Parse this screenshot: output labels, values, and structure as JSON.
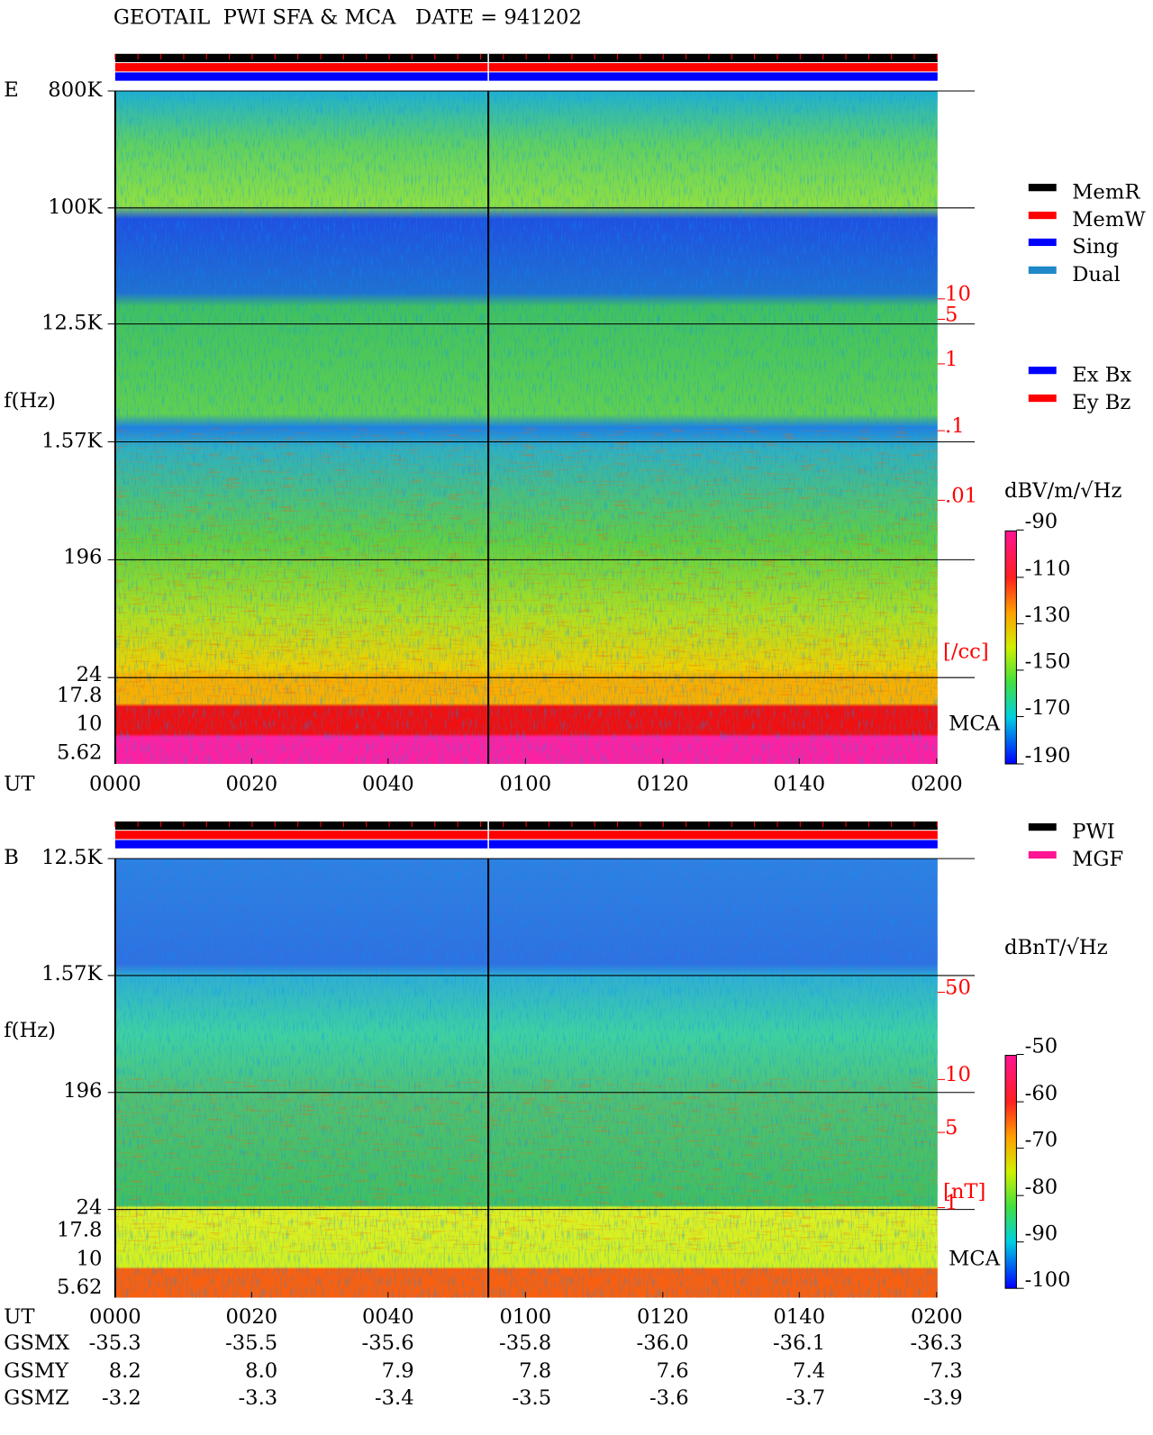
{
  "title": "GEOTAIL  PWI SFA & MCA   DATE = 941202",
  "panels": [
    {
      "label": "E",
      "y_label": "f(Hz)",
      "freq_ticks": [
        "800K",
        "100K",
        "12.5K",
        "1.57K",
        "196",
        "24",
        "17.8",
        "10",
        "5.62"
      ],
      "right_ticks": [
        "10",
        "5",
        "1",
        ".1",
        ".01"
      ],
      "right_unit": "[/cc]",
      "mca_label": "MCA",
      "colorbar_label": "dBV/m/√Hz",
      "colorbar_ticks": [
        "-90",
        "-110",
        "-130",
        "-150",
        "-170",
        "-190"
      ],
      "legends": [
        {
          "items": [
            {
              "name": "MemR",
              "color": "#000000"
            },
            {
              "name": "MemW",
              "color": "#ff0000"
            },
            {
              "name": "Sing",
              "color": "#0000ff"
            },
            {
              "name": "Dual",
              "color": "#1e88c8"
            }
          ]
        },
        {
          "items": [
            {
              "name": "Ex Bx",
              "color": "#0000ff"
            },
            {
              "name": "Ey Bz",
              "color": "#ff0000"
            }
          ]
        }
      ],
      "time_axis_label": "UT",
      "time_ticks": [
        "0000",
        "0020",
        "0040",
        "0100",
        "0120",
        "0140",
        "0200"
      ]
    },
    {
      "label": "B",
      "y_label": "f(Hz)",
      "freq_ticks": [
        "12.5K",
        "1.57K",
        "196",
        "24",
        "17.8",
        "10",
        "5.62"
      ],
      "right_ticks": [
        "50",
        "10",
        "5",
        "1"
      ],
      "right_unit": "[nT]",
      "mca_label": "MCA",
      "colorbar_label": "dBnT/√Hz",
      "colorbar_ticks": [
        "-50",
        "-60",
        "-70",
        "-80",
        "-90",
        "-100"
      ],
      "legends": [
        {
          "items": [
            {
              "name": "PWI",
              "color": "#000000"
            },
            {
              "name": "MGF",
              "color": "#ff1493"
            }
          ]
        }
      ],
      "time_axis_label": "UT",
      "time_ticks": [
        "0000",
        "0020",
        "0040",
        "0100",
        "0120",
        "0140",
        "0200"
      ]
    }
  ],
  "orbit": {
    "rows": [
      {
        "label": "GSMX",
        "values": [
          "-35.3",
          "-35.5",
          "-35.6",
          "-35.8",
          "-36.0",
          "-36.1",
          "-36.3"
        ]
      },
      {
        "label": "GSMY",
        "values": [
          "8.2",
          "8.0",
          "7.9",
          "7.8",
          "7.6",
          "7.4",
          "7.3"
        ]
      },
      {
        "label": "GSMZ",
        "values": [
          "-3.2",
          "-3.3",
          "-3.4",
          "-3.5",
          "-3.6",
          "-3.7",
          "-3.9"
        ]
      }
    ]
  }
}
